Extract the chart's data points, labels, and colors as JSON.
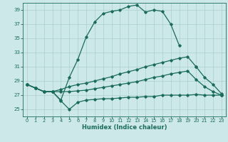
{
  "xlabel": "Humidex (Indice chaleur)",
  "bg_color": "#cce8e8",
  "grid_color": "#aacfcf",
  "line_color": "#1a6b5a",
  "xlim": [
    -0.5,
    23.5
  ],
  "ylim": [
    24.0,
    40.0
  ],
  "yticks": [
    25,
    27,
    29,
    31,
    33,
    35,
    37,
    39
  ],
  "xticks": [
    0,
    1,
    2,
    3,
    4,
    5,
    6,
    7,
    8,
    9,
    10,
    11,
    12,
    13,
    14,
    15,
    16,
    17,
    18,
    19,
    20,
    21,
    22,
    23
  ],
  "line1_x": [
    0,
    1,
    2,
    3,
    4,
    5,
    6,
    7,
    8,
    9,
    10,
    11,
    12,
    13,
    14,
    15,
    16,
    17,
    18,
    19,
    20,
    21,
    22,
    23
  ],
  "line1_y": [
    28.5,
    28.0,
    27.5,
    27.5,
    26.3,
    29.5,
    32.0,
    35.2,
    37.3,
    38.5,
    38.8,
    39.0,
    39.5,
    39.7,
    38.7,
    39.0,
    38.8,
    37.0,
    34.0,
    null,
    31.0,
    null,
    null,
    27.0
  ],
  "line2_x": [
    0,
    1,
    2,
    3,
    4,
    5,
    6,
    7,
    8,
    9,
    10,
    11,
    12,
    13,
    14,
    15,
    16,
    17,
    18,
    19,
    20,
    21,
    22,
    23
  ],
  "line2_y": [
    28.5,
    28.0,
    27.5,
    27.5,
    27.8,
    28.2,
    28.5,
    28.7,
    29.0,
    29.3,
    29.6,
    30.0,
    30.3,
    30.6,
    31.0,
    31.3,
    31.6,
    31.9,
    32.2,
    32.4,
    31.0,
    29.5,
    28.5,
    27.2
  ],
  "line3_x": [
    0,
    1,
    2,
    3,
    4,
    5,
    6,
    7,
    8,
    9,
    10,
    11,
    12,
    13,
    14,
    15,
    16,
    17,
    18,
    19,
    20,
    21,
    22,
    23
  ],
  "line3_y": [
    28.5,
    28.0,
    27.5,
    27.5,
    27.5,
    27.5,
    27.6,
    27.7,
    27.9,
    28.1,
    28.3,
    28.5,
    28.7,
    28.9,
    29.2,
    29.5,
    29.7,
    30.0,
    30.2,
    30.4,
    29.2,
    28.2,
    27.5,
    27.0
  ],
  "line4_x": [
    0,
    1,
    2,
    3,
    4,
    5,
    6,
    7,
    8,
    9,
    10,
    11,
    12,
    13,
    14,
    15,
    16,
    17,
    18,
    19,
    20,
    21,
    22,
    23
  ],
  "line4_y": [
    28.5,
    28.0,
    27.5,
    27.5,
    26.2,
    25.0,
    26.0,
    26.3,
    26.4,
    26.5,
    26.5,
    26.6,
    26.7,
    26.7,
    26.8,
    26.8,
    27.0,
    27.0,
    27.0,
    27.0,
    27.1,
    27.0,
    27.0,
    27.0
  ]
}
